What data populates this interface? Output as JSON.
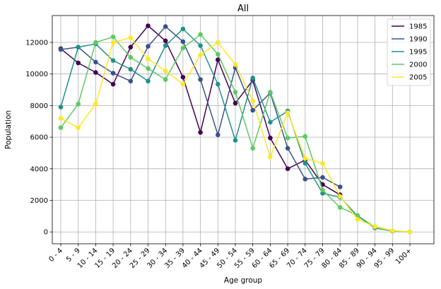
{
  "chart_data": {
    "type": "line",
    "title": "All",
    "xlabel": "Age group",
    "ylabel": "Population",
    "categories": [
      "0 - 4",
      "5 - 9",
      "10 - 14",
      "15 - 19",
      "20 - 24",
      "25 - 29",
      "30 - 34",
      "35 - 39",
      "40 - 44",
      "45 - 49",
      "50 - 54",
      "55 - 59",
      "60 - 64",
      "65 - 69",
      "70 - 74",
      "75 - 79",
      "80 - 84",
      "85 - 89",
      "90 - 94",
      "95 - 99",
      "100+"
    ],
    "yticks": [
      0,
      2000,
      4000,
      6000,
      8000,
      10000,
      12000
    ],
    "ylim": [
      -750,
      13700
    ],
    "grid": true,
    "legend_position": "top-right",
    "markers": true,
    "series": [
      {
        "name": "1985",
        "color": "#440154",
        "values": [
          11600,
          10700,
          10100,
          9350,
          11700,
          13050,
          12100,
          9800,
          6300,
          10900,
          8150,
          9600,
          5950,
          4000,
          4550,
          3000,
          2350,
          null,
          null,
          null,
          null
        ]
      },
      {
        "name": "1990",
        "color": "#3b528b",
        "values": [
          11550,
          11700,
          10750,
          10050,
          9550,
          11750,
          13000,
          12050,
          9650,
          6150,
          10400,
          7700,
          8800,
          5300,
          3350,
          3450,
          2850,
          null,
          null,
          null,
          null
        ]
      },
      {
        "name": "1995",
        "color": "#21918c",
        "values": [
          7900,
          11700,
          11900,
          10850,
          10300,
          9550,
          11800,
          12850,
          11800,
          9350,
          5800,
          9750,
          6950,
          7650,
          4350,
          2450,
          2200,
          1000,
          250,
          50,
          0
        ]
      },
      {
        "name": "2000",
        "color": "#5ec962",
        "values": [
          6600,
          8100,
          12000,
          12350,
          11050,
          10350,
          9650,
          11650,
          12500,
          11250,
          8850,
          5300,
          8850,
          5950,
          6050,
          2650,
          1550,
          1050,
          300,
          50,
          0
        ]
      },
      {
        "name": "2005",
        "color": "#fde725",
        "values": [
          7200,
          6600,
          8100,
          12000,
          12300,
          10950,
          10200,
          9350,
          11200,
          12000,
          10600,
          8300,
          4750,
          7550,
          4650,
          4350,
          2250,
          800,
          350,
          80,
          0
        ]
      }
    ]
  }
}
